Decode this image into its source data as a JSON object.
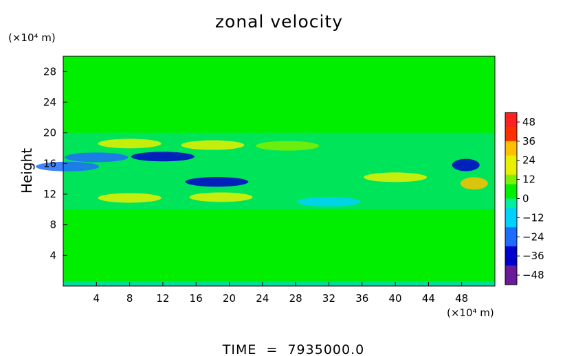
{
  "chart_data": {
    "type": "heatmap",
    "title": "zonal velocity",
    "ylabel": "Height",
    "xlabel": "",
    "x_unit": "(×10⁴ m)",
    "y_unit": "(×10⁴ m)",
    "xlim": [
      0,
      52
    ],
    "ylim": [
      0,
      30
    ],
    "x_ticks": [
      4,
      8,
      12,
      16,
      20,
      24,
      28,
      32,
      36,
      40,
      44,
      48
    ],
    "y_ticks": [
      4,
      8,
      12,
      16,
      20,
      24,
      28
    ],
    "colorbar": {
      "range": [
        -54,
        54
      ],
      "ticks": [
        48,
        36,
        24,
        12,
        0,
        -12,
        -24,
        -36,
        -48
      ],
      "tick_labels": [
        "48",
        "36",
        "24",
        "12",
        "0",
        "−12",
        "−24",
        "−36",
        "−48"
      ]
    },
    "features": [
      {
        "x": 8,
        "y": 18.6,
        "value": 24
      },
      {
        "x": 18,
        "y": 18.4,
        "value": 22
      },
      {
        "x": 27,
        "y": 18.3,
        "value": 14
      },
      {
        "x": 4,
        "y": 16.8,
        "value": -28
      },
      {
        "x": 12,
        "y": 16.9,
        "value": -30
      },
      {
        "x": 48.5,
        "y": 15.8,
        "value": -36
      },
      {
        "x": 18.5,
        "y": 13.6,
        "value": -30
      },
      {
        "x": 40,
        "y": 14.2,
        "value": 20
      },
      {
        "x": 49.5,
        "y": 13.4,
        "value": 34
      },
      {
        "x": 8,
        "y": 11.5,
        "value": 26
      },
      {
        "x": 19,
        "y": 11.6,
        "value": 20
      },
      {
        "x": 32,
        "y": 11,
        "value": -10
      },
      {
        "x": 0.5,
        "y": 15.6,
        "value": -26
      }
    ],
    "footer": "TIME  =  7935000.0"
  }
}
